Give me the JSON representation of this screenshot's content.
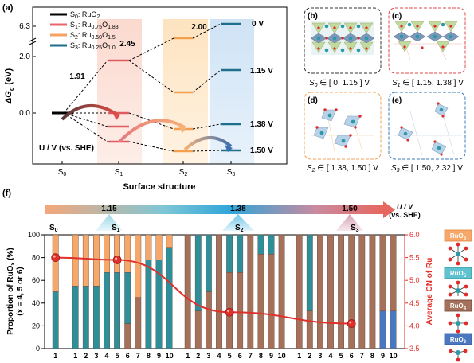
{
  "panel_a": {
    "label": "(a)",
    "y_axis_label": "ΔG",
    "y_axis_sub": "c",
    "y_axis_unit": " (eV)",
    "y_ticks": [
      "6.3",
      "2.0",
      "0.0"
    ],
    "x_axis_label": "Surface structure",
    "x_ticks": [
      "S",
      "S",
      "S",
      "S"
    ],
    "x_tick_subs": [
      "0",
      "1",
      "2",
      "3"
    ],
    "legend": [
      {
        "name": "S",
        "sub": "0",
        "formula": ": RuO",
        "formula_sub": "2",
        "color": "#000000"
      },
      {
        "name": "S",
        "sub": "1",
        "formula": ": Ru",
        "formula_sub": "0.75",
        "formula2": "O",
        "formula_sub2": "1.83",
        "color": "#e8666b"
      },
      {
        "name": "S",
        "sub": "2",
        "formula": ": Ru",
        "formula_sub": "0.50",
        "formula2": "O",
        "formula_sub2": "1.5",
        "color": "#f4a261"
      },
      {
        "name": "S",
        "sub": "3",
        "formula": ": Ru",
        "formula_sub": "0.25",
        "formula2": "O",
        "formula_sub2": "1.0",
        "color": "#1d6f8c"
      }
    ],
    "energy_labels": [
      "1.91",
      "2.45",
      "2.00"
    ],
    "potentials": [
      "0 V",
      "1.15 V",
      "1.38 V",
      "1.50 V"
    ],
    "u_label": "U / V (vs. SHE)"
  },
  "panels_bcde": {
    "b": {
      "label": "(b)",
      "caption_s": "S",
      "caption_sub": "0",
      "caption_range": " ∈ [ 0, 1.15 ] V",
      "border": "#333333"
    },
    "c": {
      "label": "(c)",
      "caption_s": "S",
      "caption_sub": "1",
      "caption_range": " ∈ [ 1.15, 1.38 ] V",
      "border": "#e04848"
    },
    "d": {
      "label": "(d)",
      "caption_s": "S",
      "caption_sub": "2",
      "caption_range": " ∈ [ 1.38, 1.50 ] V",
      "border": "#f0a25a"
    },
    "e": {
      "label": "(e)",
      "caption_s": "S",
      "caption_sub": "3",
      "caption_range": " ∈ [ 1.50, 2.32 ] V",
      "border": "#3a78b8"
    }
  },
  "panel_f": {
    "label": "(f)",
    "arrow_values": [
      "1.15",
      "1.38",
      "1.50"
    ],
    "arrow_unit_line1": "U / V",
    "arrow_unit_line2": "(vs. SHE)",
    "group_names": [
      "S",
      "S",
      "S",
      "S"
    ],
    "group_subs": [
      "0",
      "1",
      "2",
      "3"
    ],
    "y_left_label_1": "Proportion of RuO",
    "y_left_label_1_sub": "x",
    "y_left_label_1_unit": " (%)",
    "y_left_label_2": "(x = 4, 5 or 6)",
    "y_right_label": "Average CN of Ru",
    "y_left_ticks": [
      "0",
      "20",
      "40",
      "60",
      "80",
      "100"
    ],
    "y_right_ticks": [
      "3.5",
      "4.0",
      "4.5",
      "5.0",
      "5.5",
      "6.0"
    ],
    "legend": [
      {
        "text": "RuO",
        "sub": "6",
        "fill": "#f6a86a",
        "stroke": "#e0843c",
        "textcolor": "#ffffff"
      },
      {
        "text": "RuO",
        "sub": "5",
        "fill": "#5ec2cf",
        "stroke": "#2a8796",
        "textcolor": "#ffffff"
      },
      {
        "text": "RuO",
        "sub": "4",
        "fill": "#a5715a",
        "stroke": "#6d4030",
        "textcolor": "#ffffff"
      },
      {
        "text": "RuO",
        "sub": "3",
        "fill": "#4a78c0",
        "stroke": "#2c579a",
        "textcolor": "#ffffff"
      }
    ],
    "colors": {
      "ruo6": "#f6a86a",
      "ruo5": "#2f8f99",
      "ruo4": "#a5715a",
      "ruo3": "#4a78c0",
      "cn_line": "#e0302a"
    }
  },
  "chart_data": {
    "type": "bar",
    "title": "",
    "groups": [
      {
        "name": "S0",
        "x": [
          "1"
        ],
        "ruo6": [
          50
        ],
        "ruo5": [
          50
        ],
        "ruo4": [
          0
        ],
        "ruo3": [
          0
        ]
      },
      {
        "name": "S1",
        "x": [
          "1",
          "2",
          "3",
          "4",
          "5",
          "6",
          "7",
          "8",
          "9",
          "10"
        ],
        "ruo6": [
          45,
          45,
          45,
          33,
          33,
          33,
          55,
          22,
          22,
          11
        ],
        "ruo5": [
          55,
          55,
          55,
          67,
          67,
          45,
          0,
          78,
          78,
          89
        ],
        "ruo4": [
          0,
          0,
          0,
          0,
          0,
          22,
          45,
          0,
          0,
          0
        ],
        "ruo3": [
          0,
          0,
          0,
          0,
          0,
          0,
          0,
          0,
          0,
          0
        ]
      },
      {
        "name": "S2",
        "x": [
          "1",
          "2",
          "3",
          "4",
          "5",
          "6",
          "7",
          "8",
          "9",
          "10"
        ],
        "ruo6": [
          0,
          0,
          0,
          0,
          0,
          0,
          0,
          0,
          0,
          0
        ],
        "ruo5": [
          0,
          67,
          50,
          0,
          33,
          33,
          0,
          17,
          17,
          0
        ],
        "ruo4": [
          100,
          33,
          50,
          100,
          67,
          67,
          100,
          83,
          83,
          100
        ],
        "ruo3": [
          0,
          0,
          0,
          0,
          0,
          0,
          0,
          0,
          0,
          0
        ]
      },
      {
        "name": "S3",
        "x": [
          "1",
          "2",
          "3",
          "4",
          "5",
          "6",
          "7",
          "8",
          "9",
          "10"
        ],
        "ruo6": [
          0,
          0,
          0,
          0,
          0,
          0,
          0,
          0,
          0,
          0
        ],
        "ruo5": [
          0,
          67,
          0,
          0,
          0,
          0,
          0,
          0,
          0,
          0
        ],
        "ruo4": [
          100,
          33,
          100,
          100,
          100,
          100,
          100,
          100,
          67,
          67
        ],
        "ruo3": [
          0,
          0,
          0,
          0,
          0,
          0,
          0,
          0,
          33,
          33
        ]
      }
    ],
    "avg_cn_points": [
      {
        "group": "S0",
        "x": "1",
        "y": 5.5
      },
      {
        "group": "S1",
        "x": "5",
        "y": 5.45
      },
      {
        "group": "S2",
        "x": "5",
        "y": 4.3
      },
      {
        "group": "S3",
        "x": "6",
        "y": 4.05
      }
    ],
    "ylabel_left": "Proportion of RuOx (%) (x = 4, 5 or 6)",
    "ylabel_right": "Average CN of Ru",
    "ylim_left": [
      0,
      100
    ],
    "ylim_right": [
      3.5,
      6.0
    ]
  }
}
